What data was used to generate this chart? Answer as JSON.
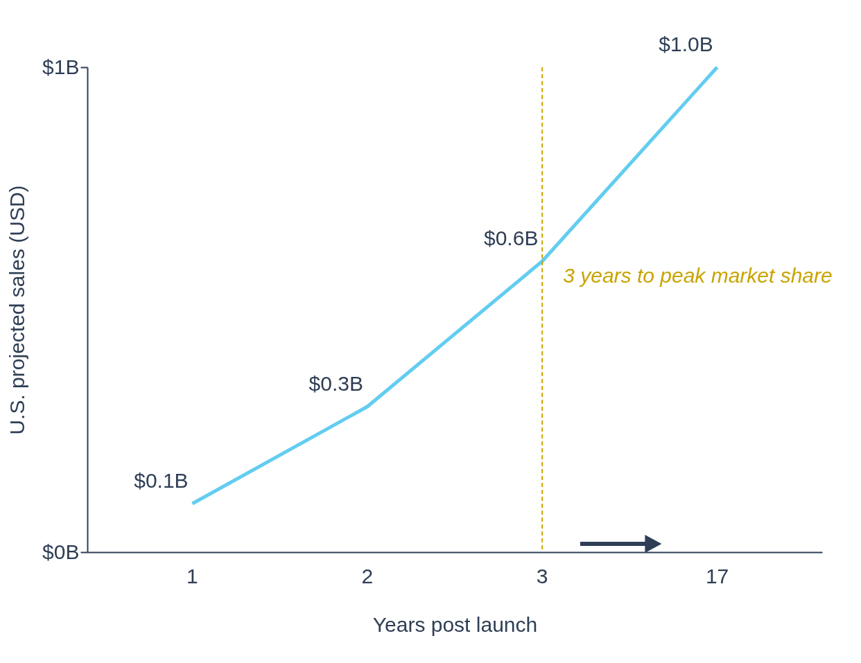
{
  "chart_data": {
    "type": "line",
    "xlabel": "Years post launch",
    "ylabel": "U.S. projected sales (USD)",
    "categories": [
      "1",
      "2",
      "3",
      "17"
    ],
    "values": [
      0.1,
      0.3,
      0.6,
      1.0
    ],
    "value_labels": [
      "$0.1B",
      "$0.3B",
      "$0.6B",
      "$1.0B"
    ],
    "color": "#62cdf0",
    "ylim": [
      0,
      1
    ],
    "yticks": [
      {
        "value": 0,
        "label": "$0B"
      },
      {
        "value": 1,
        "label": "$1B"
      }
    ],
    "ref_lines": [
      {
        "axis": "x",
        "value": "3",
        "label": "3 years to peak market share",
        "color": "#c9a400",
        "line_style": "dashed"
      }
    ],
    "grid": false,
    "marker": "none",
    "line_style": "solid"
  }
}
